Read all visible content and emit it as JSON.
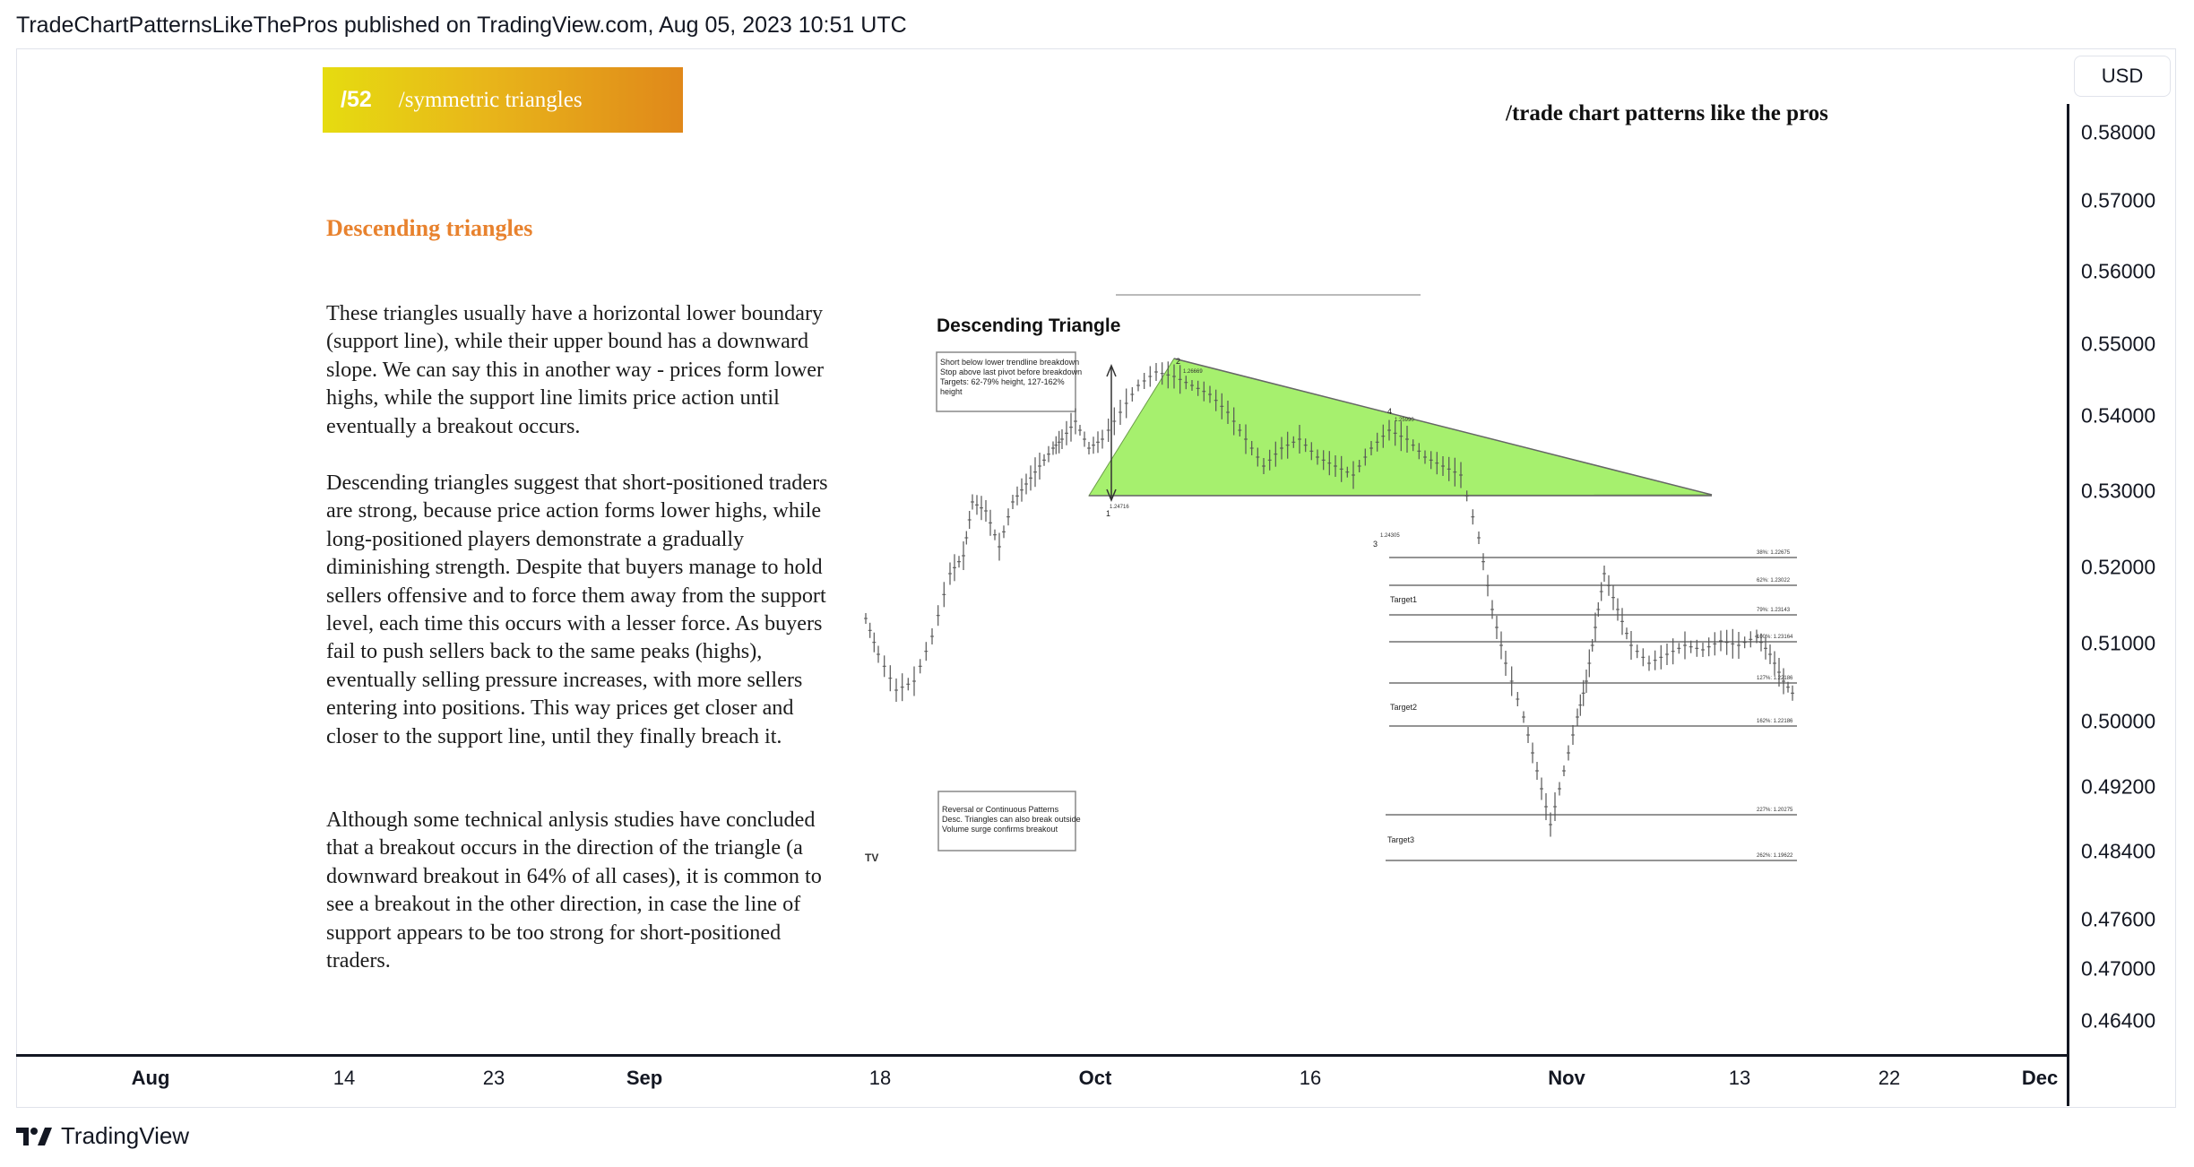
{
  "header": {
    "published_line": "TradeChartPatternsLikeThePros published on TradingView.com, Aug 05, 2023 10:51 UTC"
  },
  "price_axis": {
    "currency": "USD",
    "labels": [
      "0.58000",
      "0.57000",
      "0.56000",
      "0.55000",
      "0.54000",
      "0.53000",
      "0.52000",
      "0.51000",
      "0.50000",
      "0.49200",
      "0.48400",
      "0.47600",
      "0.47000",
      "0.46400"
    ]
  },
  "time_axis": {
    "labels": [
      "Aug",
      "14",
      "23",
      "Sep",
      "18",
      "Oct",
      "16",
      "Nov",
      "13",
      "22",
      "Dec"
    ]
  },
  "footer": {
    "brand": "TradingView"
  },
  "slide": {
    "banner_number": "/52",
    "banner_title": "/symmetric triangles",
    "brand_title": "/trade chart patterns like the pros",
    "heading": "Descending triangles",
    "paragraphs": [
      "These triangles usually have a horizontal lower boundary (support line), while their upper bound has a downward slope. We can say this in another way - prices form lower highs, while the support line limits price action until eventually a breakout occurs.",
      "Descending triangles suggest that short-positioned traders are strong, because price action forms lower highs, while long-positioned players demonstrate a gradually diminishing strength. Despite that buyers manage to hold sellers offensive and to force them away from the support level, each time this occurs with a lesser force. As buyers fail to push sellers back to the same peaks (highs), eventually selling pressure increases, with more sellers entering into positions. This way prices get closer and closer to the support line, until they finally breach it.",
      "Although some technical anlysis studies have concluded that a breakout occurs in the direction of the triangle (a downward breakout in 64% of all cases), it is common to see a breakout in the other direction, in case the line of support appears to be too strong for short-positioned traders."
    ]
  },
  "inner_chart": {
    "title": "Descending Triangle",
    "note_box_1": [
      "Short below lower trendline breakdown",
      "Stop above last pivot before breakdown",
      "Targets: 62-79% height, 127-162%",
      "height"
    ],
    "note_box_2": [
      "Reversal or Continuous Patterns",
      "Desc. Triangles can also break outside",
      "Volume surge confirms breakout"
    ],
    "pivot_labels": [
      "1",
      "2",
      "3",
      "4"
    ],
    "pivot_values": [
      "1.24716",
      "1.26669",
      "1.24305",
      "1.25990"
    ],
    "targets": [
      "Target1",
      "Target2",
      "Target3"
    ],
    "fib_labels": [
      "38%: 1.22675",
      "62%: 1.23022",
      "79%: 1.23143",
      "100%: 1.23164",
      "127%: 1.22186",
      "162%: 1.22186",
      "227%: 1.20275",
      "262%: 1.19622"
    ],
    "colors": {
      "triangle_fill": "#a6f06e",
      "triangle_edge": "#6c9c4a",
      "lines": "#555555"
    }
  }
}
